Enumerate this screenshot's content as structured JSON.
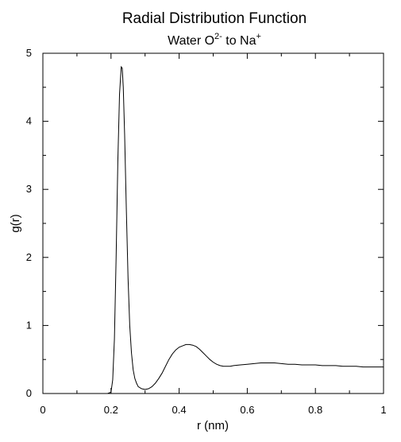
{
  "chart_data": {
    "type": "line",
    "title": "Radial Distribution Function",
    "subtitle": {
      "prefix": "Water O",
      "prefix_sup": "2-",
      "middle": " to Na",
      "middle_sup": "+"
    },
    "xlabel": "r (nm)",
    "ylabel": "g(r)",
    "xlim": [
      0,
      1
    ],
    "ylim": [
      0,
      5
    ],
    "xticks": [
      0,
      0.2,
      0.4,
      0.6,
      0.8,
      1
    ],
    "xtick_labels": [
      "0",
      "0.2",
      "0.4",
      "0.6",
      "0.8",
      "1"
    ],
    "yticks": [
      0,
      1,
      2,
      3,
      4,
      5
    ],
    "ytick_labels": [
      "0",
      "1",
      "2",
      "3",
      "4",
      "5"
    ],
    "grid": false,
    "legend": "none",
    "line_color": "#000000",
    "series": [
      {
        "x": [
          0.0,
          0.19,
          0.2,
          0.205,
          0.21,
          0.215,
          0.22,
          0.225,
          0.23,
          0.233,
          0.236,
          0.24,
          0.245,
          0.25,
          0.255,
          0.26,
          0.265,
          0.27,
          0.275,
          0.28,
          0.29,
          0.3,
          0.31,
          0.32,
          0.33,
          0.34,
          0.35,
          0.36,
          0.37,
          0.38,
          0.39,
          0.4,
          0.41,
          0.42,
          0.43,
          0.44,
          0.45,
          0.46,
          0.47,
          0.48,
          0.49,
          0.5,
          0.51,
          0.52,
          0.53,
          0.54,
          0.55,
          0.56,
          0.58,
          0.6,
          0.62,
          0.64,
          0.66,
          0.68,
          0.7,
          0.72,
          0.74,
          0.76,
          0.78,
          0.8,
          0.82,
          0.84,
          0.86,
          0.88,
          0.9,
          0.92,
          0.94,
          0.96,
          0.98,
          1.0
        ],
        "y": [
          0.0,
          0.0,
          0.02,
          0.2,
          0.8,
          2.0,
          3.4,
          4.4,
          4.8,
          4.78,
          4.5,
          3.8,
          2.7,
          1.7,
          1.0,
          0.6,
          0.35,
          0.22,
          0.15,
          0.1,
          0.07,
          0.06,
          0.07,
          0.1,
          0.15,
          0.22,
          0.3,
          0.4,
          0.5,
          0.58,
          0.64,
          0.68,
          0.7,
          0.72,
          0.72,
          0.71,
          0.69,
          0.65,
          0.6,
          0.55,
          0.5,
          0.46,
          0.43,
          0.41,
          0.4,
          0.4,
          0.4,
          0.41,
          0.42,
          0.43,
          0.44,
          0.45,
          0.45,
          0.45,
          0.44,
          0.43,
          0.43,
          0.42,
          0.42,
          0.42,
          0.41,
          0.41,
          0.41,
          0.4,
          0.4,
          0.4,
          0.39,
          0.39,
          0.39,
          0.39
        ]
      }
    ]
  }
}
